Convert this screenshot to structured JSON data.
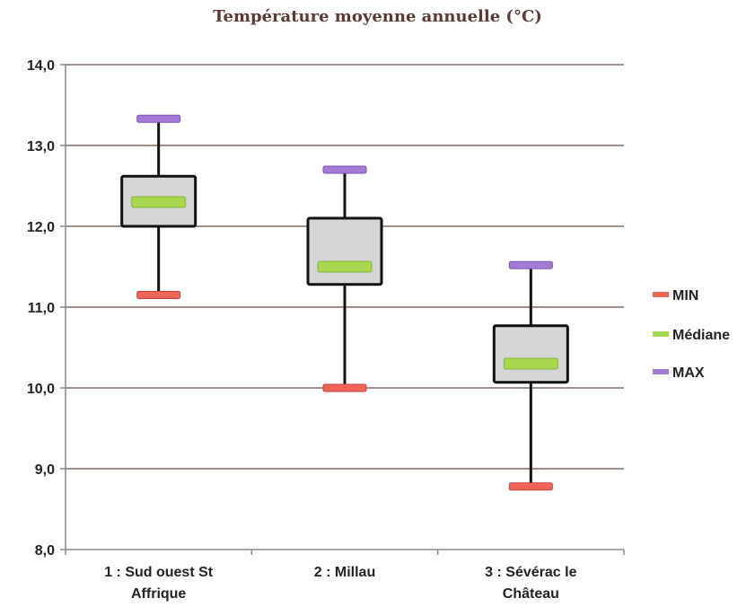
{
  "chart_data": {
    "type": "box",
    "title": "Température moyenne annuelle (°C)",
    "xlabel": "",
    "ylabel": "",
    "ylim": [
      8.0,
      14.0
    ],
    "yticks": [
      "8,0",
      "9,0",
      "10,0",
      "11,0",
      "12,0",
      "13,0",
      "14,0"
    ],
    "grid": true,
    "legend_position": "right",
    "categories": [
      [
        "1 : Sud ouest St",
        "Affrique"
      ],
      [
        "2 : Millau"
      ],
      [
        "3 : Sévérac le",
        "Château"
      ]
    ],
    "boxes": [
      {
        "min": 11.15,
        "q1": 12.0,
        "median": 12.3,
        "q3": 12.62,
        "max": 13.33
      },
      {
        "min": 10.0,
        "q1": 11.28,
        "median": 11.5,
        "q3": 12.1,
        "max": 12.7
      },
      {
        "min": 8.78,
        "q1": 10.07,
        "median": 10.3,
        "q3": 10.77,
        "max": 11.52
      }
    ],
    "series": [
      {
        "name": "MIN",
        "color": "#f0645a"
      },
      {
        "name": "Médiane",
        "color": "#a8d84e"
      },
      {
        "name": "MAX",
        "color": "#a57ad6"
      }
    ],
    "colors": {
      "box_fill": "#d6d6d6",
      "box_stroke": "#111111",
      "grid": "#a08f8a",
      "axis": "#888888"
    }
  }
}
